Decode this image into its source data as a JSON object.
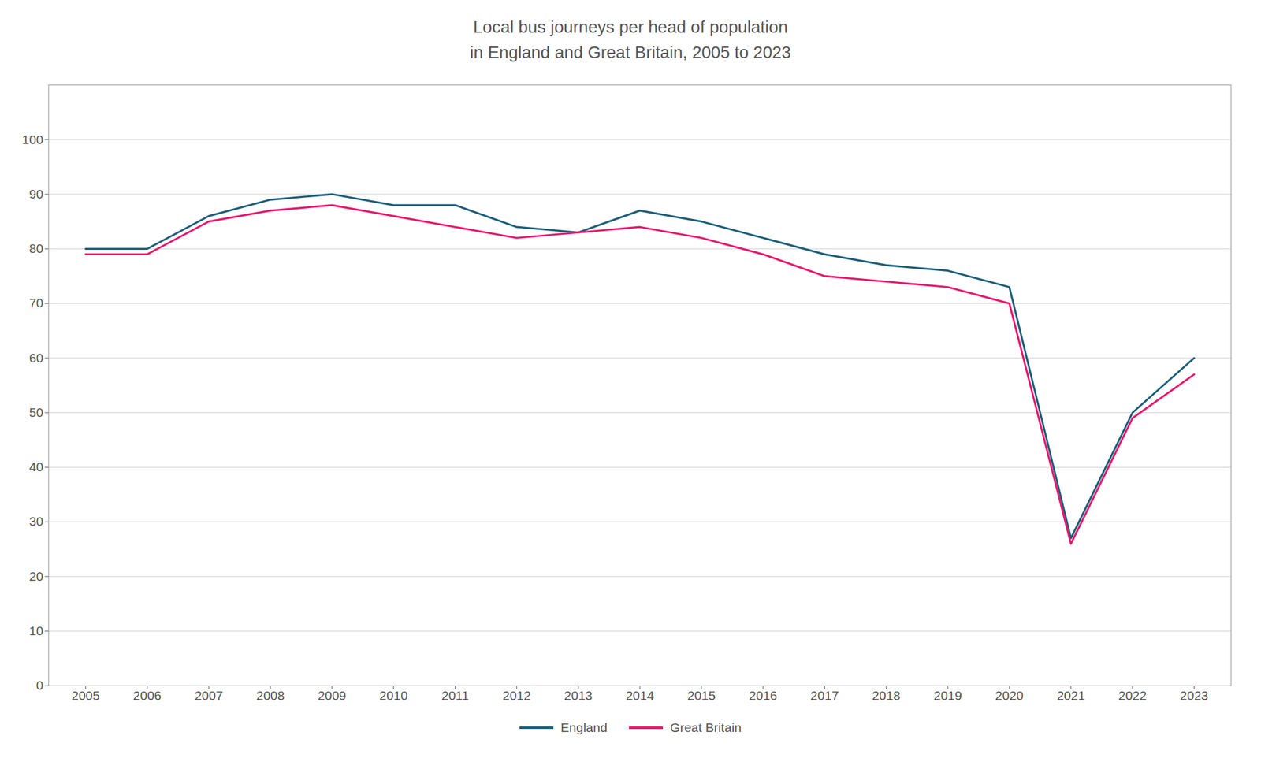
{
  "chart_data": {
    "type": "line",
    "title": "Local bus journeys per head of population\nin England and Great Britain, 2005 to 2023",
    "x": [
      2005,
      2006,
      2007,
      2008,
      2009,
      2010,
      2011,
      2012,
      2013,
      2014,
      2015,
      2016,
      2017,
      2018,
      2019,
      2020,
      2021,
      2022,
      2023
    ],
    "series": [
      {
        "name": "England",
        "color": "#1d5f7a",
        "values": [
          80,
          80,
          86,
          89,
          90,
          88,
          88,
          84,
          83,
          87,
          85,
          82,
          79,
          77,
          76,
          73,
          27,
          50,
          60
        ]
      },
      {
        "name": "Great Britain",
        "color": "#e8186d",
        "values": [
          79,
          79,
          85,
          87,
          88,
          86,
          84,
          82,
          83,
          84,
          82,
          79,
          75,
          74,
          73,
          70,
          26,
          49,
          57
        ]
      }
    ],
    "xlim": [
      2004.4,
      2023.6
    ],
    "xticks": [
      2005,
      2006,
      2007,
      2008,
      2009,
      2010,
      2011,
      2012,
      2013,
      2014,
      2015,
      2016,
      2017,
      2018,
      2019,
      2020,
      2021,
      2022,
      2023
    ],
    "ylim": [
      0,
      110
    ],
    "yticks": [
      0,
      10,
      20,
      30,
      40,
      50,
      60,
      70,
      80,
      90,
      100
    ],
    "grid": "y",
    "legend": "bottom"
  }
}
